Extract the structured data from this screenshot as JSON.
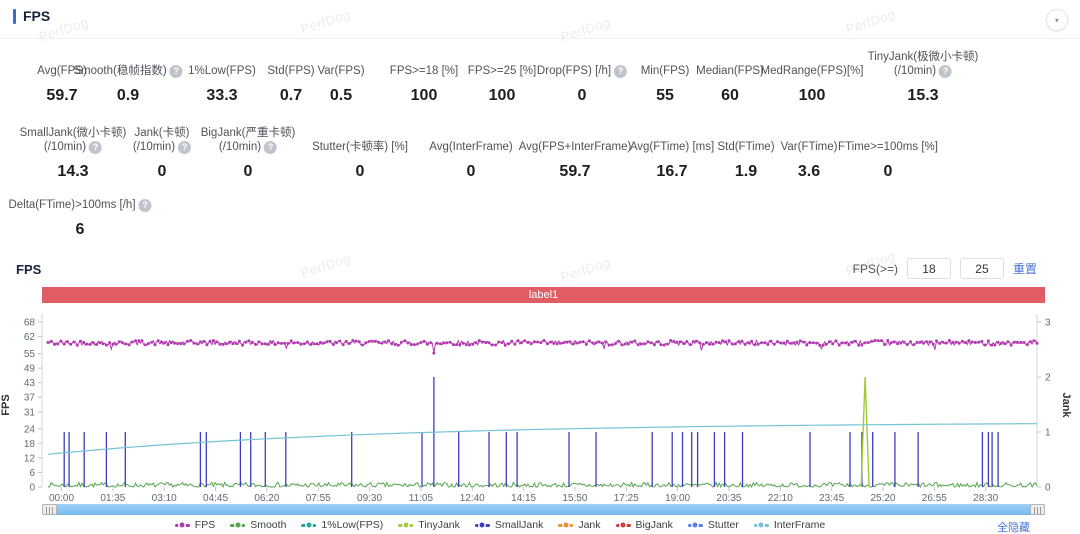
{
  "header": {
    "title": "FPS"
  },
  "icons": {
    "help": "?",
    "collapse": "▼"
  },
  "watermark": {
    "text": "PerfDog"
  },
  "stats": {
    "rows": [
      [
        {
          "label": "Avg(FPS)",
          "value": "59.7",
          "help": false
        },
        {
          "label": "Smooth(稳帧指数)",
          "value": "0.9",
          "help": true
        },
        {
          "label": "1%Low(FPS)",
          "value": "33.3",
          "help": false
        },
        {
          "label": "Std(FPS)",
          "value": "0.7",
          "help": false
        },
        {
          "label": "Var(FPS)",
          "value": "0.5",
          "help": false
        },
        {
          "label": "FPS>=18 [%]",
          "value": "100",
          "help": false
        },
        {
          "label": "FPS>=25 [%]",
          "value": "100",
          "help": false
        },
        {
          "label": "Drop(FPS) [/h]",
          "value": "0",
          "help": true
        },
        {
          "label": "Min(FPS)",
          "value": "55",
          "help": false
        },
        {
          "label": "Median(FPS)",
          "value": "60",
          "help": false
        },
        {
          "label": "MedRange(FPS)[%]",
          "value": "100",
          "help": false
        },
        {
          "label": "TinyJank(极微小卡顿)",
          "label2": "(/10min)",
          "value": "15.3",
          "help": true
        }
      ],
      [
        {
          "label": "SmallJank(微小卡顿)",
          "label2": "(/10min)",
          "value": "14.3",
          "help": true
        },
        {
          "label": "Jank(卡顿)",
          "label2": "(/10min)",
          "value": "0",
          "help": true
        },
        {
          "label": "BigJank(严重卡顿)",
          "label2": "(/10min)",
          "value": "0",
          "help": true
        },
        {
          "label": "Stutter(卡顿率) [%]",
          "value": "0",
          "help": false
        },
        {
          "label": "Avg(InterFrame)",
          "value": "0",
          "help": false
        },
        {
          "label": "Avg(FPS+InterFrame)",
          "value": "59.7",
          "help": false
        },
        {
          "label": "Avg(FTime) [ms]",
          "value": "16.7",
          "help": false
        },
        {
          "label": "Std(FTime)",
          "value": "1.9",
          "help": false
        },
        {
          "label": "Var(FTime)",
          "value": "3.6",
          "help": false
        },
        {
          "label": "FTime>=100ms [%]",
          "value": "0",
          "help": false
        }
      ],
      [
        {
          "label": "Delta(FTime)>100ms [/h]",
          "value": "6",
          "help": true
        }
      ]
    ]
  },
  "chart_section": {
    "title": "FPS",
    "filter": {
      "label": "FPS(>=)",
      "input1": "18",
      "input2": "25",
      "reset_label": "重置"
    },
    "banner": {
      "text": "label1",
      "color": "#e05d64"
    },
    "hide_all_label": "全隐藏"
  },
  "chart_data": {
    "type": "line",
    "banner_label": "label1",
    "x_axis": {
      "tick_labels": [
        "00:00",
        "01:35",
        "03:10",
        "04:45",
        "06:20",
        "07:55",
        "09:30",
        "11:05",
        "12:40",
        "14:15",
        "15:50",
        "17:25",
        "19:00",
        "20:35",
        "22:10",
        "23:45",
        "25:20",
        "26:55",
        "28:30"
      ],
      "tick_interval_s": 95,
      "duration_s": 1830
    },
    "y_axis_left": {
      "label": "FPS",
      "ticks": [
        0,
        6,
        12,
        18,
        24,
        31,
        37,
        43,
        49,
        55,
        62,
        68
      ],
      "max": 68
    },
    "y_axis_right": {
      "label": "Jank",
      "ticks": [
        0,
        1,
        2,
        3
      ],
      "max": 3
    },
    "series": [
      {
        "name": "FPS",
        "color": "#b23ab0",
        "render": "noisy-line",
        "baseline": 59.4,
        "amplitude": 2.0,
        "dips": [
          [
            118,
            56.8
          ],
          [
            440,
            57.2
          ],
          [
            714,
            55.2
          ],
          [
            1030,
            56.9
          ],
          [
            1210,
            56.3
          ],
          [
            1432,
            57.0
          ],
          [
            1641,
            56.6
          ]
        ]
      },
      {
        "name": "Smooth",
        "color": "#56a44e",
        "render": "noise",
        "min": 0,
        "max": 1.9
      },
      {
        "name": "1%Low(FPS)",
        "color": "#26a69a",
        "render": "none"
      },
      {
        "name": "TinyJank",
        "color": "#a2c93a",
        "render": "spikes",
        "unit": "jank",
        "spikes": [
          [
            1512,
            2
          ]
        ]
      },
      {
        "name": "SmallJank",
        "color": "#3d3dc2",
        "render": "spikes",
        "unit": "jank",
        "spikes": [
          [
            30,
            1
          ],
          [
            39,
            1
          ],
          [
            67,
            1
          ],
          [
            108,
            1
          ],
          [
            143,
            1
          ],
          [
            282,
            1
          ],
          [
            293,
            1
          ],
          [
            356,
            1
          ],
          [
            375,
            1
          ],
          [
            402,
            1
          ],
          [
            440,
            1
          ],
          [
            562,
            1
          ],
          [
            692,
            1
          ],
          [
            714,
            2
          ],
          [
            760,
            1
          ],
          [
            816,
            1
          ],
          [
            848,
            1
          ],
          [
            868,
            1
          ],
          [
            964,
            1
          ],
          [
            1014,
            1
          ],
          [
            1118,
            1
          ],
          [
            1155,
            1
          ],
          [
            1174,
            1
          ],
          [
            1191,
            1
          ],
          [
            1202,
            1
          ],
          [
            1233,
            1
          ],
          [
            1252,
            1
          ],
          [
            1285,
            1
          ],
          [
            1410,
            1
          ],
          [
            1484,
            1
          ],
          [
            1506,
            1
          ],
          [
            1526,
            1
          ],
          [
            1567,
            1
          ],
          [
            1610,
            1
          ],
          [
            1729,
            1
          ],
          [
            1740,
            1
          ],
          [
            1747,
            1
          ],
          [
            1758,
            1
          ]
        ]
      },
      {
        "name": "Jank",
        "color": "#ef8e31",
        "render": "none"
      },
      {
        "name": "BigJank",
        "color": "#d43b3b",
        "render": "none"
      },
      {
        "name": "Stutter",
        "color": "#5f7de8",
        "render": "none"
      },
      {
        "name": "InterFrame",
        "color": "#74c3d6",
        "render": "curve",
        "start": 13.5,
        "end": 26.8,
        "tau_s": 620
      }
    ]
  }
}
